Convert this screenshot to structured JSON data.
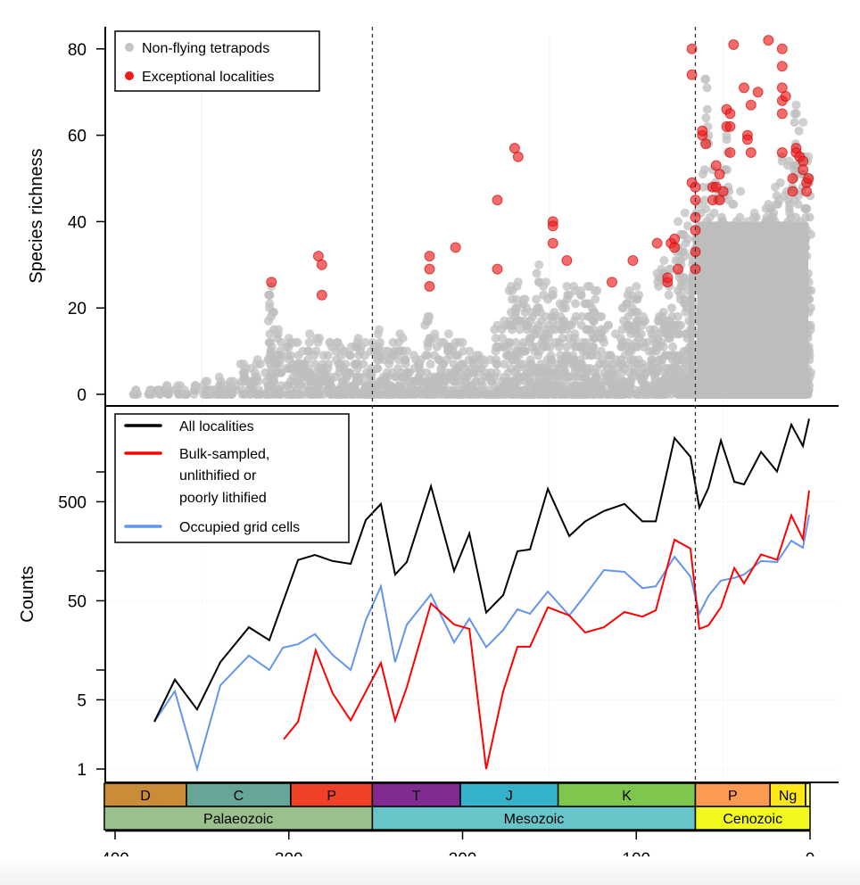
{
  "chart_data": [
    {
      "type": "scatter",
      "panel": "top",
      "title": "",
      "xlabel": "",
      "ylabel": "Species richness",
      "xlim": [
        406,
        -4
      ],
      "ylim": [
        -2,
        86
      ],
      "yticks": [
        0,
        20,
        40,
        60,
        80
      ],
      "ytick_labels": [
        "0",
        "20",
        "40",
        "60",
        "80"
      ],
      "grid": true,
      "legend": {
        "placement": "top-left",
        "entries": [
          {
            "label": "Non-flying tetrapods",
            "color": "#bdbdbd",
            "marker": "circle"
          },
          {
            "label": "Exceptional localities",
            "color": "#ee1c1c",
            "marker": "circle"
          }
        ]
      },
      "series": [
        {
          "name": "Non-flying tetrapods",
          "color": "#bdbdbd",
          "note": "dense cloud of localities; upper envelope per age listed",
          "envelope": {
            "x": [
              388,
              380,
              374,
              370,
              364,
              360,
              354,
              348,
              344,
              340,
              336,
              332,
              326,
              322,
              318,
              312,
              310,
              306,
              300,
              296,
              292,
              288,
              284,
              280,
              276,
              272,
              268,
              264,
              260,
              256,
              252,
              248,
              244,
              240,
              236,
              232,
              228,
              224,
              220,
              216,
              212,
              208,
              204,
              200,
              196,
              192,
              188,
              184,
              180,
              176,
              172,
              168,
              164,
              160,
              156,
              152,
              148,
              144,
              140,
              136,
              132,
              128,
              124,
              120,
              116,
              112,
              108,
              104,
              100,
              96,
              92,
              88,
              84,
              80,
              76,
              72,
              68,
              64,
              60,
              56,
              52,
              48,
              44,
              40,
              36,
              32,
              28,
              24,
              20,
              16,
              12,
              8,
              4,
              1
            ],
            "y": [
              1,
              1,
              1,
              2,
              2,
              1,
              2,
              3,
              1,
              4,
              2,
              3,
              7,
              6,
              8,
              8,
              25,
              15,
              13,
              12,
              10,
              14,
              13,
              9,
              12,
              12,
              10,
              11,
              13,
              12,
              12,
              15,
              10,
              12,
              14,
              10,
              9,
              8,
              18,
              14,
              12,
              14,
              12,
              12,
              10,
              9,
              8,
              8,
              16,
              17,
              25,
              26,
              22,
              19,
              30,
              26,
              24,
              21,
              25,
              25,
              24,
              25,
              24,
              18,
              16,
              14,
              20,
              24,
              25,
              18,
              15,
              28,
              31,
              29,
              40,
              42,
              32,
              44,
              73,
              52,
              46,
              60,
              44,
              47,
              40,
              42,
              39,
              44,
              48,
              55,
              54,
              67,
              63,
              55
            ]
          }
        },
        {
          "name": "Exceptional localities",
          "color": "#ee1c1c",
          "x": [
            310,
            283,
            281,
            281,
            219,
            219,
            219,
            204,
            180,
            180,
            170,
            168,
            148,
            148,
            148,
            140,
            114,
            102,
            88,
            82,
            82,
            80,
            78,
            78,
            76,
            68,
            68,
            68,
            66,
            66,
            66,
            66,
            66,
            66,
            62,
            62,
            60,
            56,
            56,
            54,
            54,
            52,
            52,
            50,
            48,
            48,
            46,
            46,
            46,
            44,
            38,
            36,
            36,
            34,
            34,
            30,
            24,
            16,
            16,
            16,
            16,
            16,
            16,
            14,
            10,
            10,
            8,
            8,
            6,
            4,
            4,
            2,
            2,
            1
          ],
          "y": [
            26,
            32,
            30,
            23,
            32,
            29,
            25,
            34,
            45,
            29,
            57,
            55,
            40,
            39,
            35,
            31,
            26,
            31,
            35,
            26,
            27,
            35,
            36,
            34,
            29,
            74,
            80,
            49,
            48,
            45,
            41,
            38,
            33,
            29,
            60,
            61,
            58,
            45,
            48,
            53,
            48,
            45,
            51,
            47,
            62,
            66,
            65,
            62,
            56,
            81,
            71,
            60,
            59,
            56,
            67,
            70,
            82,
            80,
            76,
            71,
            68,
            65,
            56,
            69,
            50,
            47,
            57,
            56,
            55,
            54,
            52,
            49,
            47,
            50
          ]
        }
      ]
    },
    {
      "type": "line",
      "panel": "bottom",
      "title": "",
      "xlabel": "",
      "ylabel": "Counts",
      "xscale": "linear",
      "yscale": "log",
      "xlim": [
        406,
        -4
      ],
      "ylim": [
        0.85,
        5000
      ],
      "yticks": [
        1,
        5,
        50,
        500
      ],
      "ytick_labels": [
        "1",
        "5",
        "50",
        "500"
      ],
      "minor_yticks": [
        10,
        100,
        1000
      ],
      "grid": true,
      "legend": {
        "placement": "top-left",
        "entries": [
          {
            "label": "All localities",
            "color": "#000000"
          },
          {
            "label_lines": [
              "Bulk-sampled,",
              "unlithified or",
              "poorly lithified"
            ],
            "label": "Bulk-sampled, unlithified or poorly lithified",
            "color": "#ff0000"
          },
          {
            "label": "Occupied grid cells",
            "color": "#6495ed"
          }
        ]
      },
      "series": [
        {
          "name": "All localities",
          "color": "#000000",
          "x": [
            377.4,
            365.6,
            352.8,
            339.4,
            323.0,
            311.2,
            294.7,
            285.0,
            274.7,
            264.4,
            255.7,
            247.0,
            238.8,
            232.1,
            218.2,
            204.9,
            196.1,
            186.4,
            176.6,
            168.4,
            161.2,
            150.9,
            138.6,
            129.4,
            118.6,
            106.8,
            96.5,
            88.8,
            78.0,
            68.8,
            63.7,
            58.5,
            51.3,
            43.6,
            38.0,
            28.2,
            19.0,
            10.8,
            4.1,
            0.5
          ],
          "y": [
            3,
            8,
            4,
            12,
            27,
            20,
            129,
            145,
            126,
            118,
            327,
            475,
            92,
            123,
            718,
            100,
            239,
            38,
            57,
            158,
            165,
            674,
            225,
            317,
            403,
            475,
            317,
            317,
            2200,
            1420,
            436,
            690,
            2080,
            796,
            748,
            1590,
            1010,
            3000,
            1830,
            3450
          ]
        },
        {
          "name": "Bulk-sampled, unlithified or poorly lithified",
          "color": "#ff0000",
          "x": [
            302.9,
            294.7,
            284.5,
            274.7,
            264.4,
            247.0,
            238.8,
            232.1,
            218.2,
            204.9,
            196.1,
            186.4,
            176.6,
            168.4,
            161.2,
            150.9,
            138.6,
            129.4,
            118.6,
            106.8,
            96.5,
            88.8,
            78.0,
            68.8,
            63.7,
            58.5,
            51.3,
            43.6,
            38.0,
            28.2,
            19.0,
            10.8,
            4.1,
            0.5
          ],
          "y": [
            2.0,
            3.0,
            15.8,
            5.8,
            3.1,
            11.8,
            3.1,
            6.7,
            47,
            28.8,
            26,
            1.0,
            6.1,
            17.2,
            17.2,
            43,
            35.5,
            23.9,
            27,
            38.5,
            34.6,
            40,
            207,
            168,
            26,
            28.2,
            43,
            107,
            75,
            147,
            130,
            364,
            210,
            650
          ]
        },
        {
          "name": "Occupied grid cells",
          "color": "#6495ed",
          "x": [
            377.4,
            365.6,
            352.8,
            339.4,
            323.0,
            311.2,
            303.4,
            294.7,
            285.0,
            274.7,
            264.4,
            255.7,
            247.0,
            238.8,
            232.1,
            218.2,
            204.9,
            196.1,
            186.4,
            176.6,
            168.4,
            161.2,
            150.9,
            138.6,
            129.4,
            118.6,
            106.8,
            96.5,
            88.8,
            78.0,
            68.8,
            63.7,
            58.5,
            51.3,
            43.6,
            38.0,
            28.2,
            19.0,
            10.8,
            4.1,
            0.5
          ],
          "y": [
            3.0,
            6.1,
            1.0,
            7.0,
            14,
            10,
            16.8,
            18.2,
            23,
            14.2,
            10,
            31.8,
            70,
            12,
            28.7,
            58,
            19,
            33,
            17,
            25.4,
            41,
            37,
            62,
            35.5,
            57,
            102,
            98,
            67,
            70,
            139,
            88,
            37,
            56,
            80,
            85,
            92,
            126,
            123,
            202,
            172,
            370
          ]
        }
      ],
      "vlines": [
        {
          "x": 251.9,
          "style": "dashed",
          "meaning": "Permian–Triassic boundary"
        },
        {
          "x": 66.0,
          "style": "dashed",
          "meaning": "Cretaceous–Paleogene boundary"
        }
      ]
    }
  ],
  "timescale": {
    "xticks": [
      400,
      300,
      200,
      100,
      0
    ],
    "xtick_labels": [
      "400",
      "300",
      "200",
      "100",
      "0"
    ],
    "periods": [
      {
        "label": "D",
        "start": 419.2,
        "end": 358.9,
        "color": "#cb8c37"
      },
      {
        "label": "C",
        "start": 358.9,
        "end": 298.9,
        "color": "#67a599"
      },
      {
        "label": "P",
        "start": 298.9,
        "end": 251.9,
        "color": "#f04028"
      },
      {
        "label": "T",
        "start": 251.9,
        "end": 201.3,
        "color": "#812b92"
      },
      {
        "label": "J",
        "start": 201.3,
        "end": 145.0,
        "color": "#34b2c9"
      },
      {
        "label": "K",
        "start": 145.0,
        "end": 66.0,
        "color": "#7fc64e"
      },
      {
        "label": "P",
        "start": 66.0,
        "end": 23.0,
        "color": "#fd9a52"
      },
      {
        "label": "Ng",
        "start": 23.0,
        "end": 2.58,
        "color": "#ffe619"
      },
      {
        "label": "",
        "start": 2.58,
        "end": 0.0,
        "color": "#f9f97f"
      }
    ],
    "eras": [
      {
        "label": "Palaeozoic",
        "start": 419.2,
        "end": 251.9,
        "color": "#99c08d"
      },
      {
        "label": "Mesozoic",
        "start": 251.9,
        "end": 66.0,
        "color": "#67c5ca"
      },
      {
        "label": "Cenozoic",
        "start": 66.0,
        "end": 0.0,
        "color": "#f2f91d"
      }
    ]
  }
}
